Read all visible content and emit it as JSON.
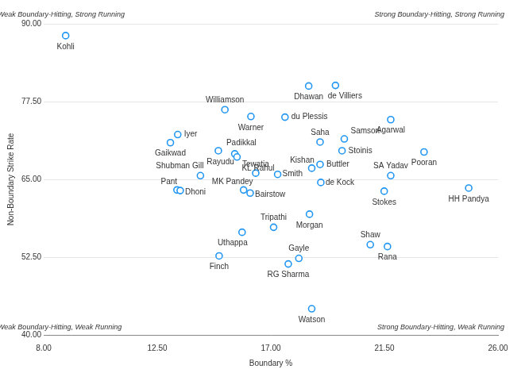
{
  "chart_data": {
    "type": "scatter",
    "x_label": "Boundary %",
    "y_label": "Non-Boundary Strike Rate",
    "annotations": [
      "Weak Boundary-Hitting, Strong Running",
      "Strong Boundary-Hitting, Strong Running",
      "Weak Boundary-Hitting, Weak Running",
      "Strong Boundary-Hitting, Weak Running"
    ],
    "point_labels": [
      "Kohli",
      "Dhawan",
      "de Villiers",
      "Williamson",
      "Warner",
      "du Plessis",
      "Agarwal",
      "Iyer",
      "Gaikwad",
      "Saha",
      "Samson",
      "Padikkal",
      "Rayudu",
      "KL Rahul",
      "Stoinis",
      "Pooran",
      "Kishan",
      "Buttler",
      "Tewatia",
      "Smith",
      "Shubman Gill",
      "SA Yadav",
      "de Kock",
      "Pant",
      "Dhoni",
      "MK Pandey",
      "Bairstow",
      "Stokes",
      "HH Pandya",
      "Morgan",
      "Tripathi",
      "Uthappa",
      "Shaw",
      "Rana",
      "Gayle",
      "Finch",
      "RG Sharma",
      "Watson"
    ],
    "x": [
      8.87,
      18.5,
      19.56,
      15.18,
      16.21,
      17.56,
      21.75,
      13.31,
      13.02,
      18.95,
      19.91,
      14.92,
      15.57,
      15.66,
      19.82,
      23.07,
      18.62,
      18.95,
      16.4,
      17.27,
      14.21,
      21.75,
      18.98,
      13.28,
      13.41,
      15.92,
      16.18,
      21.49,
      24.84,
      18.53,
      17.11,
      15.86,
      20.94,
      21.62,
      18.11,
      14.95,
      17.69,
      18.62
    ],
    "values": [
      88.1,
      80.0,
      80.1,
      76.2,
      75.1,
      75.0,
      74.6,
      72.2,
      70.9,
      71.0,
      71.5,
      69.6,
      69.1,
      68.6,
      69.6,
      69.4,
      66.8,
      67.4,
      66.0,
      65.8,
      65.6,
      65.6,
      64.5,
      63.3,
      63.2,
      63.3,
      62.8,
      63.1,
      63.6,
      59.4,
      57.3,
      56.5,
      54.5,
      54.2,
      52.3,
      52.7,
      51.4,
      44.2
    ],
    "color": "#2196f3",
    "marker": "circle",
    "xlim": [
      8,
      26
    ],
    "xticks": [
      {
        "value": 8,
        "label": "8.00"
      },
      {
        "value": 12.5,
        "label": "12.50"
      },
      {
        "value": 17,
        "label": "17.00"
      },
      {
        "value": 21.5,
        "label": "21.50"
      },
      {
        "value": 26,
        "label": "26.00"
      }
    ],
    "ylim": [
      40,
      90
    ],
    "yticks": [
      {
        "value": 40,
        "label": "40.00"
      },
      {
        "value": 52.5,
        "label": "52.50"
      },
      {
        "value": 65,
        "label": "65.00"
      },
      {
        "value": 77.5,
        "label": "77.50"
      },
      {
        "value": 90,
        "label": "90.00"
      }
    ],
    "grid": true
  }
}
